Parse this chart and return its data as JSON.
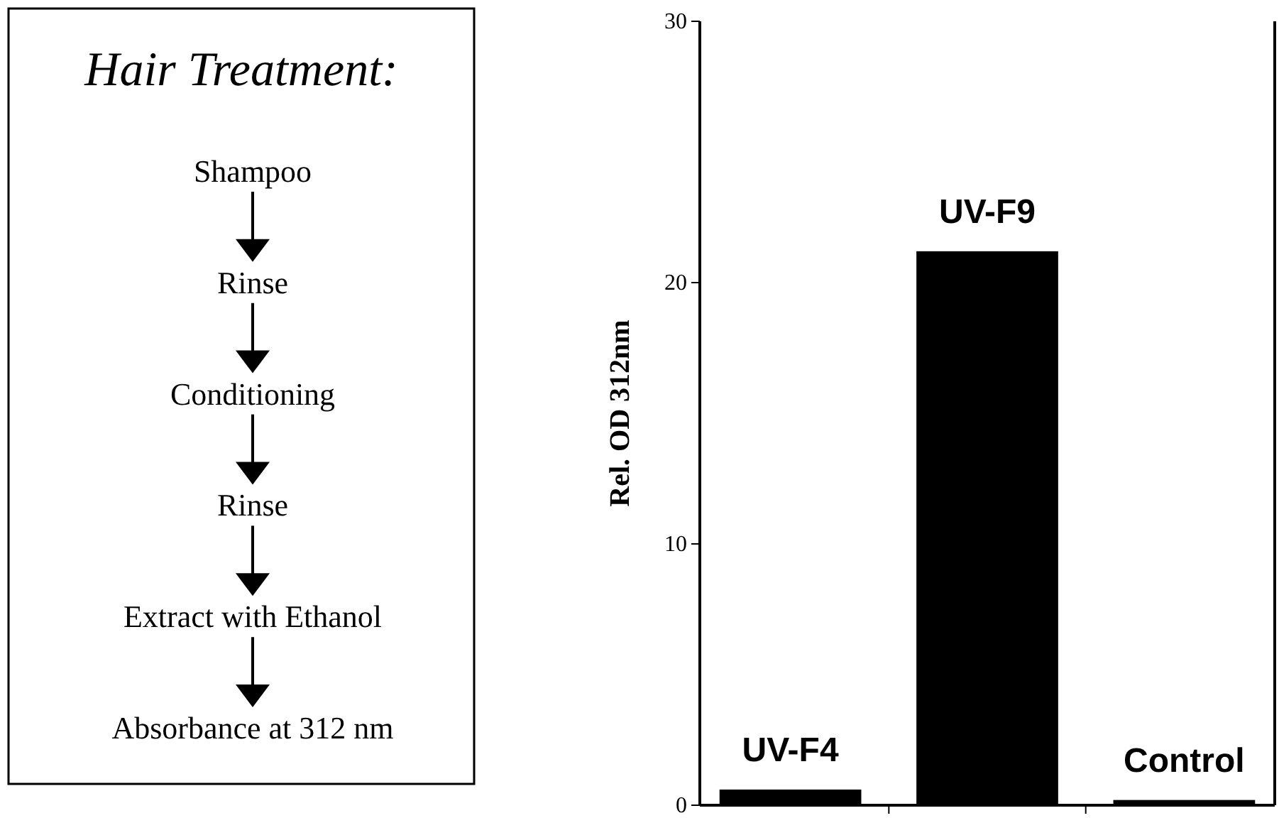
{
  "chart_data": [
    {
      "type": "other",
      "title": "Hair Treatment:",
      "annotations": [
        "Shampoo",
        "Rinse",
        "Conditioning",
        "Rinse",
        "Extract  with Ethanol",
        "Absorbance at 312 nm"
      ]
    },
    {
      "type": "bar",
      "ylabel": "Rel. OD 312nm",
      "categories": [
        "UV-F4",
        "UV-F9",
        "Control"
      ],
      "values": [
        0.6,
        21.2,
        0.2
      ],
      "color": "#000000",
      "ylim": [
        0,
        30
      ],
      "yticks": [
        0,
        10,
        20,
        30
      ]
    }
  ]
}
